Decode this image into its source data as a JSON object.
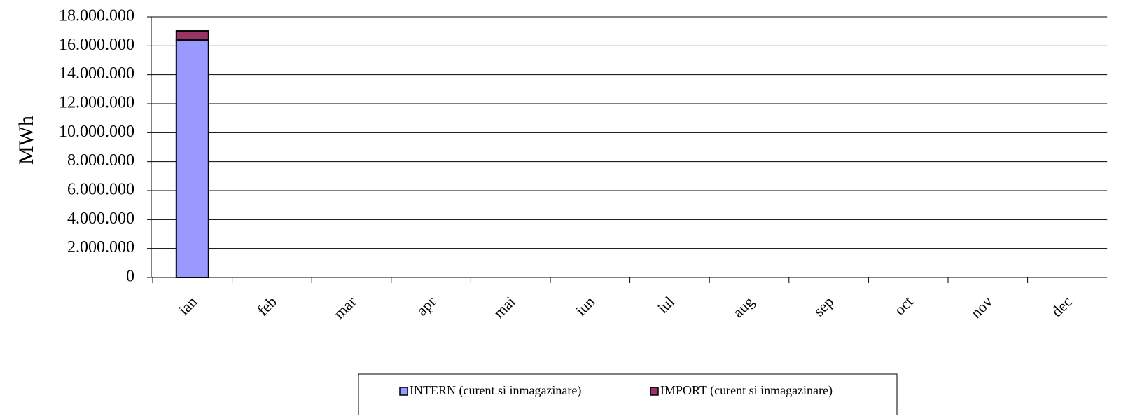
{
  "chart_data": {
    "type": "stacked_bar",
    "y_label": "MWh",
    "categories": [
      "ian",
      "feb",
      "mar",
      "apr",
      "mai",
      "iun",
      "iul",
      "aug",
      "sep",
      "oct",
      "nov",
      "dec"
    ],
    "series": [
      {
        "name": "INTERN (curent si inmagazinare)",
        "color": "#9999ff",
        "values": [
          16400000,
          null,
          null,
          null,
          null,
          null,
          null,
          null,
          null,
          null,
          null,
          null
        ]
      },
      {
        "name": "IMPORT (curent si inmagazinare)",
        "color": "#993366",
        "values": [
          630000,
          null,
          null,
          null,
          null,
          null,
          null,
          null,
          null,
          null,
          null,
          null
        ]
      }
    ],
    "ylim": [
      0,
      18000000
    ],
    "yticks": [
      0,
      {
        "value": 2000000,
        "label": "2.000.000"
      },
      {
        "value": 4000000,
        "label": "4.000.000"
      },
      {
        "value": 6000000,
        "label": "6.000.000"
      },
      {
        "value": 8000000,
        "label": "8.000.000"
      },
      {
        "value": 10000000,
        "label": "10.000.000"
      },
      {
        "value": 12000000,
        "label": "12.000.000"
      },
      {
        "value": 14000000,
        "label": "14.000.000"
      },
      {
        "value": 16000000,
        "label": "16.000.000"
      },
      {
        "value": 18000000,
        "label": "18.000.000"
      }
    ],
    "grid": true,
    "legend": "bottom"
  }
}
